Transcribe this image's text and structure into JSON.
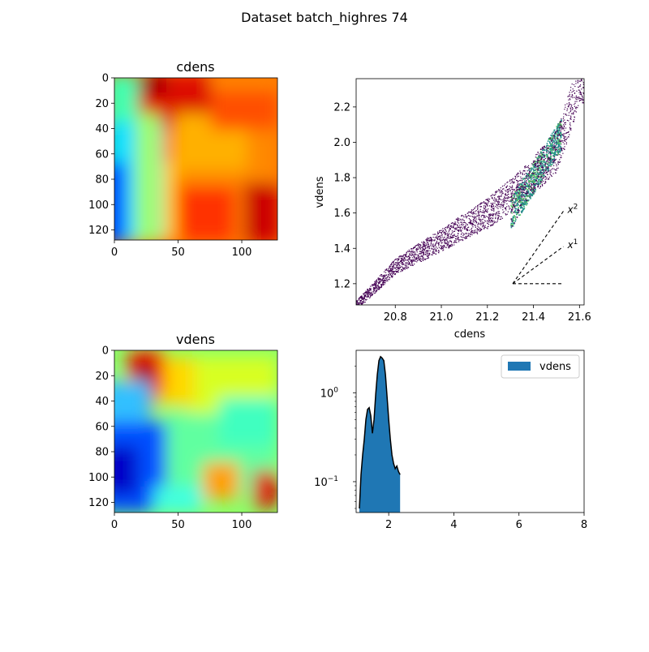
{
  "figure": {
    "title": "Dataset batch_highres 74"
  },
  "colors": {
    "hist_fill": "#1f77b4",
    "hist_line": "#000000",
    "scatter_low": "#440154",
    "scatter_mid": "#21918c",
    "scatter_high": "#5ec962",
    "guide_line": "#000000"
  },
  "chart_data": [
    {
      "type": "heatmap",
      "title": "cdens",
      "colormap": "jet",
      "xlim": [
        0,
        128
      ],
      "ylim": [
        128,
        0
      ],
      "x_ticks": [
        0,
        50,
        100
      ],
      "y_ticks": [
        0,
        20,
        40,
        60,
        80,
        100,
        120
      ],
      "grid_size": [
        128,
        128
      ],
      "value_samples": {
        "description_points": [
          {
            "x": 5,
            "y": 100,
            "level": 0.05
          },
          {
            "x": 20,
            "y": 60,
            "level": 0.55
          },
          {
            "x": 30,
            "y": 5,
            "level": 0.95
          },
          {
            "x": 80,
            "y": 40,
            "level": 0.8
          },
          {
            "x": 80,
            "y": 110,
            "level": 0.9
          },
          {
            "x": 120,
            "y": 110,
            "level": 0.95
          }
        ]
      }
    },
    {
      "type": "scatter",
      "xlabel": "cdens",
      "ylabel": "vdens",
      "xlim": [
        20.63,
        21.62
      ],
      "ylim": [
        1.08,
        2.36
      ],
      "x_ticks": [
        20.8,
        21.0,
        21.2,
        21.4,
        21.6
      ],
      "y_ticks": [
        1.2,
        1.4,
        1.6,
        1.8,
        2.0,
        2.2
      ],
      "series_trend": [
        {
          "x": 20.63,
          "y": 1.08
        },
        {
          "x": 20.8,
          "y": 1.3
        },
        {
          "x": 21.0,
          "y": 1.45
        },
        {
          "x": 21.2,
          "y": 1.6
        },
        {
          "x": 21.35,
          "y": 1.75
        },
        {
          "x": 21.5,
          "y": 1.95
        },
        {
          "x": 21.6,
          "y": 2.35
        }
      ],
      "dense_region": {
        "x": [
          21.3,
          21.52
        ],
        "y": [
          1.6,
          2.05
        ]
      },
      "guides": [
        {
          "label": "x",
          "exponent": "2",
          "from": {
            "x": 21.31,
            "y": 1.2
          },
          "to": {
            "x": 21.53,
            "y": 1.61
          }
        },
        {
          "label": "x",
          "exponent": "1",
          "from": {
            "x": 21.31,
            "y": 1.2
          },
          "to": {
            "x": 21.53,
            "y": 1.41
          }
        },
        {
          "label": "",
          "exponent": "",
          "from": {
            "x": 21.31,
            "y": 1.2
          },
          "to": {
            "x": 21.53,
            "y": 1.2
          }
        }
      ]
    },
    {
      "type": "heatmap",
      "title": "vdens",
      "colormap": "jet",
      "xlim": [
        0,
        128
      ],
      "ylim": [
        128,
        0
      ],
      "x_ticks": [
        0,
        50,
        100
      ],
      "y_ticks": [
        0,
        20,
        40,
        60,
        80,
        100,
        120
      ],
      "grid_size": [
        128,
        128
      ],
      "value_samples": {
        "description_points": [
          {
            "x": 5,
            "y": 100,
            "level": 0.05
          },
          {
            "x": 20,
            "y": 30,
            "level": 0.97
          },
          {
            "x": 70,
            "y": 60,
            "level": 0.45
          },
          {
            "x": 80,
            "y": 105,
            "level": 0.75
          },
          {
            "x": 120,
            "y": 110,
            "level": 0.9
          }
        ]
      }
    },
    {
      "type": "area",
      "legend": [
        "vdens"
      ],
      "legend_position": "top-right",
      "xlim": [
        1.0,
        8.0
      ],
      "ylim": [
        0.045,
        3.0
      ],
      "yscale": "log",
      "x_ticks": [
        2,
        4,
        6,
        8
      ],
      "y_ticks": [
        {
          "value": 1,
          "label_base": "10",
          "label_exp": "0"
        },
        {
          "value": 0.1,
          "label_base": "10",
          "label_exp": "−1"
        }
      ],
      "x": [
        1.1,
        1.15,
        1.2,
        1.25,
        1.3,
        1.35,
        1.4,
        1.45,
        1.5,
        1.55,
        1.6,
        1.65,
        1.7,
        1.75,
        1.8,
        1.85,
        1.9,
        1.95,
        2.0,
        2.05,
        2.1,
        2.15,
        2.2,
        2.25,
        2.3,
        2.35
      ],
      "values": [
        0.05,
        0.12,
        0.2,
        0.3,
        0.5,
        0.65,
        0.68,
        0.55,
        0.35,
        0.5,
        0.95,
        1.6,
        2.3,
        2.55,
        2.45,
        2.3,
        1.6,
        0.9,
        0.5,
        0.3,
        0.2,
        0.16,
        0.14,
        0.15,
        0.13,
        0.12
      ]
    }
  ]
}
